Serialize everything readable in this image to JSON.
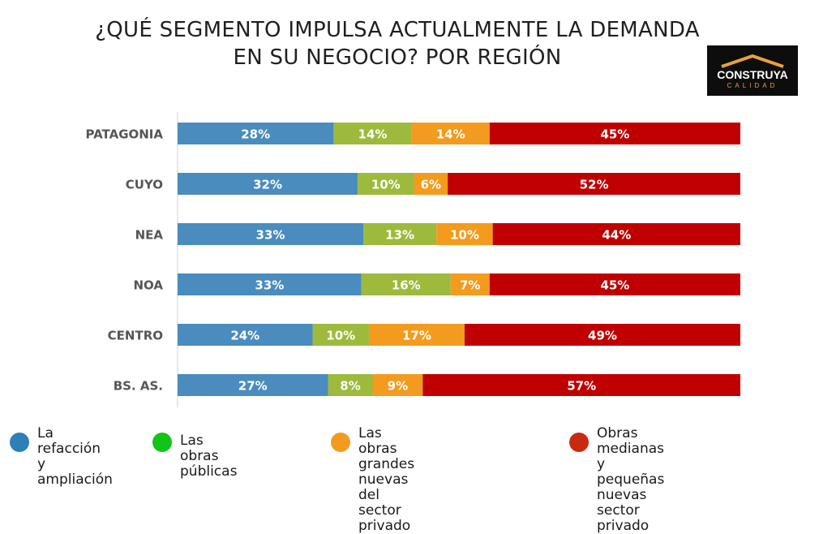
{
  "title_line1": "¿QUÉ SEGMENTO IMPULSA ACTUALMENTE LA DEMANDA",
  "title_line2": "EN SU NEGOCIO? POR REGIÓN",
  "logo": {
    "name": "CONSTRUYA",
    "sub": "CALIDAD"
  },
  "chart_data": {
    "type": "bar",
    "orientation": "horizontal",
    "stacked": true,
    "categories": [
      "PATAGONIA",
      "CUYO",
      "NEA",
      "NOA",
      "CENTRO",
      "BS. AS."
    ],
    "series": [
      {
        "name": "La refacción\ny ampliación",
        "color": "#4a8cbd",
        "values": [
          28,
          32,
          33,
          33,
          24,
          27
        ]
      },
      {
        "name": "Las obras públicas",
        "color": "#9dba3c",
        "values": [
          14,
          10,
          13,
          16,
          10,
          8
        ]
      },
      {
        "name": "Las obras grandes nuevas\ndel sector privado",
        "color": "#f39b1e",
        "values": [
          14,
          6,
          10,
          7,
          17,
          9
        ]
      },
      {
        "name": "Obras medianas y pequeñas\nnuevas sector privado",
        "color": "#c00000",
        "values": [
          45,
          52,
          44,
          45,
          49,
          57
        ]
      }
    ],
    "labels": [
      [
        "28%",
        "14%",
        "14%",
        "45%"
      ],
      [
        "32%",
        "10%",
        "6%",
        "52%"
      ],
      [
        "33%",
        "13%",
        "10%",
        "44%"
      ],
      [
        "33%",
        "16%",
        "7%",
        "45%"
      ],
      [
        "24%",
        "10%",
        "17%",
        "49%"
      ],
      [
        "27%",
        "8%",
        "9%",
        "57%"
      ]
    ],
    "legend_position": "bottom",
    "grid": false
  },
  "legend_colors": [
    "#2e7fb8",
    "#12c41a",
    "#f39b1e",
    "#c82a10"
  ]
}
